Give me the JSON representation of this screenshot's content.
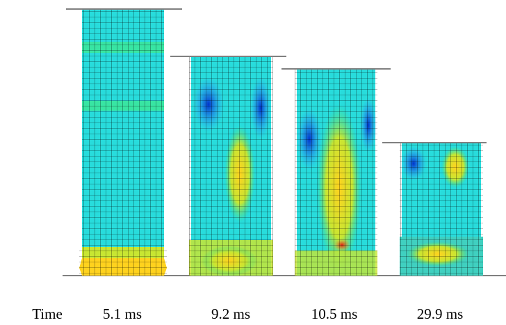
{
  "labels": {
    "time": "Time",
    "frames": [
      "5.1 ms",
      "9.2 ms",
      "10.5 ms",
      "29.9 ms"
    ]
  }
}
